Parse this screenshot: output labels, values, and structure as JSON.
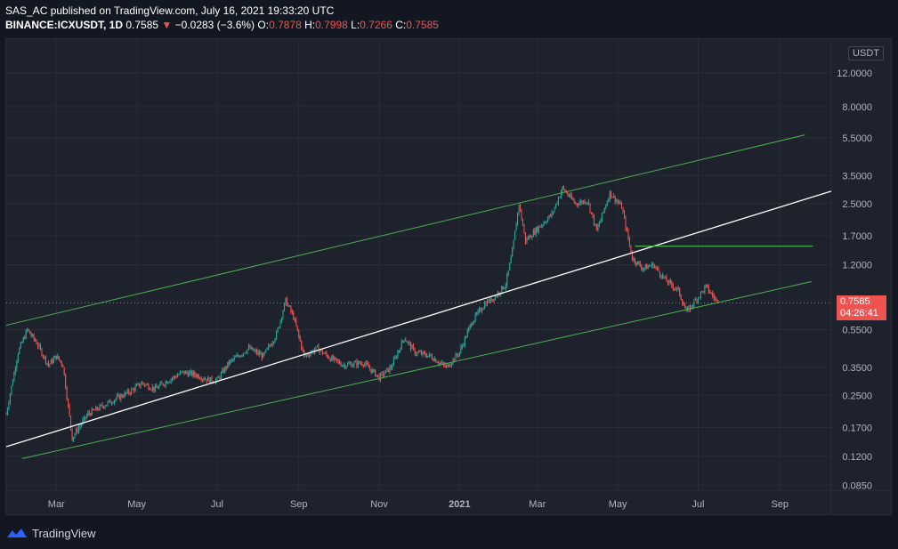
{
  "header": {
    "line1": "SAS_AC published on TradingView.com, July 16, 2021 19:33:20 UTC",
    "symbol": "BINANCE:ICXUSDT, 1D",
    "last": "0.7585",
    "arrow": "▼",
    "change": "−0.0283 (−3.6%)",
    "o_label": "O:",
    "o_val": "0.7878",
    "h_label": "H:",
    "h_val": "0.7998",
    "l_label": "L:",
    "l_val": "0.7266",
    "c_label": "C:",
    "c_val": "0.7585"
  },
  "price_axis": {
    "unit": "USDT",
    "current_price": "0.7585",
    "countdown": "04:26:41"
  },
  "footer": {
    "brand": "TradingView"
  },
  "colors": {
    "background": "#131722",
    "up": "#26a69a",
    "down": "#ef5350",
    "channel": "#4caf50",
    "midline": "#ffffff"
  },
  "chart_data": {
    "type": "candlestick",
    "scale": "log",
    "ylim": [
      0.08,
      18
    ],
    "y_ticks": [
      {
        "label": "0.0850",
        "value": 0.085
      },
      {
        "label": "0.1200",
        "value": 0.12
      },
      {
        "label": "0.1700",
        "value": 0.17
      },
      {
        "label": "0.2500",
        "value": 0.25
      },
      {
        "label": "0.3500",
        "value": 0.35
      },
      {
        "label": "0.5500",
        "value": 0.55
      },
      {
        "label": "1.2000",
        "value": 1.2
      },
      {
        "label": "1.7000",
        "value": 1.7
      },
      {
        "label": "2.5000",
        "value": 2.5
      },
      {
        "label": "3.5000",
        "value": 3.5
      },
      {
        "label": "5.5000",
        "value": 5.5
      },
      {
        "label": "8.0000",
        "value": 8.0
      },
      {
        "label": "12.0000",
        "value": 12.0
      }
    ],
    "x_ticks": [
      {
        "label": "Mar",
        "date": "2020-03-01"
      },
      {
        "label": "May",
        "date": "2020-05-01"
      },
      {
        "label": "Jul",
        "date": "2020-07-01"
      },
      {
        "label": "Sep",
        "date": "2020-09-01"
      },
      {
        "label": "Nov",
        "date": "2020-11-01"
      },
      {
        "label": "2021",
        "date": "2021-01-01",
        "bold": true
      },
      {
        "label": "Mar",
        "date": "2021-03-01"
      },
      {
        "label": "May",
        "date": "2021-05-01"
      },
      {
        "label": "Jul",
        "date": "2021-07-01"
      },
      {
        "label": "Sep",
        "date": "2021-09-01"
      }
    ],
    "x_range": [
      "2020-01-23",
      "2021-10-10"
    ],
    "current_price": 0.7585,
    "close_path": [
      [
        "2020-01-23",
        0.2
      ],
      [
        "2020-02-01",
        0.42
      ],
      [
        "2020-02-08",
        0.55
      ],
      [
        "2020-02-15",
        0.47
      ],
      [
        "2020-02-24",
        0.36
      ],
      [
        "2020-03-01",
        0.4
      ],
      [
        "2020-03-06",
        0.36
      ],
      [
        "2020-03-13",
        0.15
      ],
      [
        "2020-03-18",
        0.17
      ],
      [
        "2020-03-25",
        0.2
      ],
      [
        "2020-04-05",
        0.22
      ],
      [
        "2020-04-15",
        0.24
      ],
      [
        "2020-04-25",
        0.26
      ],
      [
        "2020-05-05",
        0.29
      ],
      [
        "2020-05-15",
        0.27
      ],
      [
        "2020-05-25",
        0.3
      ],
      [
        "2020-06-05",
        0.33
      ],
      [
        "2020-06-15",
        0.32
      ],
      [
        "2020-06-25",
        0.3
      ],
      [
        "2020-07-01",
        0.3
      ],
      [
        "2020-07-10",
        0.37
      ],
      [
        "2020-07-25",
        0.44
      ],
      [
        "2020-08-05",
        0.4
      ],
      [
        "2020-08-15",
        0.52
      ],
      [
        "2020-08-22",
        0.78
      ],
      [
        "2020-08-28",
        0.64
      ],
      [
        "2020-09-05",
        0.4
      ],
      [
        "2020-09-15",
        0.44
      ],
      [
        "2020-09-25",
        0.39
      ],
      [
        "2020-10-05",
        0.36
      ],
      [
        "2020-10-20",
        0.37
      ],
      [
        "2020-11-01",
        0.31
      ],
      [
        "2020-11-10",
        0.35
      ],
      [
        "2020-11-20",
        0.5
      ],
      [
        "2020-11-28",
        0.42
      ],
      [
        "2020-12-10",
        0.4
      ],
      [
        "2020-12-22",
        0.35
      ],
      [
        "2021-01-01",
        0.42
      ],
      [
        "2021-01-10",
        0.6
      ],
      [
        "2021-01-20",
        0.75
      ],
      [
        "2021-01-28",
        0.82
      ],
      [
        "2021-02-05",
        0.95
      ],
      [
        "2021-02-10",
        1.4
      ],
      [
        "2021-02-15",
        2.5
      ],
      [
        "2021-02-20",
        1.6
      ],
      [
        "2021-03-01",
        1.85
      ],
      [
        "2021-03-12",
        2.2
      ],
      [
        "2021-03-20",
        3.0
      ],
      [
        "2021-03-30",
        2.5
      ],
      [
        "2021-04-08",
        2.6
      ],
      [
        "2021-04-15",
        1.8
      ],
      [
        "2021-04-25",
        2.85
      ],
      [
        "2021-05-04",
        2.4
      ],
      [
        "2021-05-12",
        1.3
      ],
      [
        "2021-05-20",
        1.15
      ],
      [
        "2021-05-28",
        1.2
      ],
      [
        "2021-06-06",
        1.0
      ],
      [
        "2021-06-16",
        0.88
      ],
      [
        "2021-06-22",
        0.68
      ],
      [
        "2021-06-30",
        0.8
      ],
      [
        "2021-07-07",
        0.92
      ],
      [
        "2021-07-16",
        0.7585
      ]
    ],
    "annotations": [
      {
        "type": "trend_line",
        "name": "channel-upper",
        "color": "#4caf50",
        "from": [
          "2020-01-23",
          0.58
        ],
        "to": [
          "2021-09-20",
          5.7
        ]
      },
      {
        "type": "trend_line",
        "name": "channel-middle",
        "color": "#ffffff",
        "from": [
          "2020-01-23",
          0.135
        ],
        "to": [
          "2021-10-10",
          2.9
        ]
      },
      {
        "type": "trend_line",
        "name": "channel-lower",
        "color": "#4caf50",
        "from": [
          "2020-02-04",
          0.117
        ],
        "to": [
          "2021-09-25",
          0.98
        ]
      },
      {
        "type": "horizontal_segment",
        "name": "resistance-level",
        "color": "#4caf50",
        "value": 1.5,
        "from": "2021-05-14",
        "to": "2021-09-26"
      }
    ]
  }
}
